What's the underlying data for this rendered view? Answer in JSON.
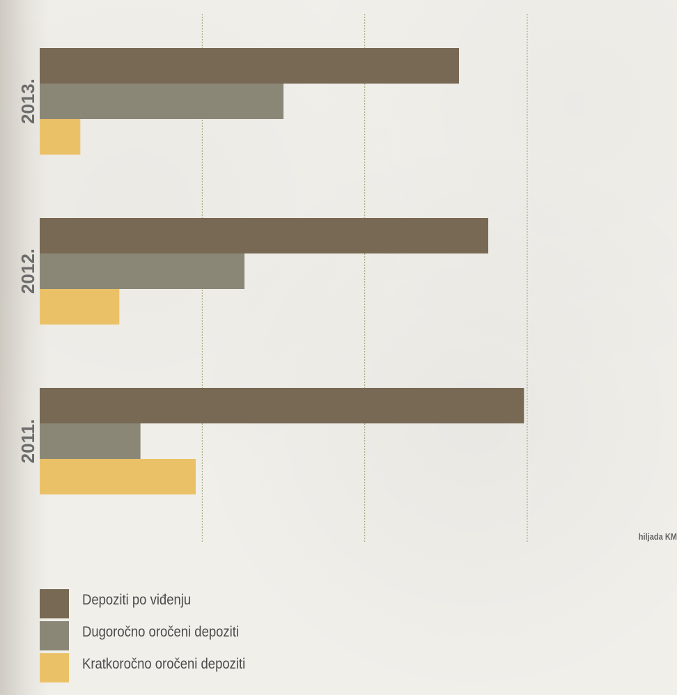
{
  "chart_data": {
    "type": "bar",
    "orientation": "horizontal",
    "categories": [
      "2013.",
      "2012.",
      "2011."
    ],
    "series": [
      {
        "name": "Depoziti po viđenju",
        "color": "#786954",
        "values": [
          129000,
          138000,
          149000
        ]
      },
      {
        "name": "Dugoročno oročeni depoziti",
        "color": "#8b8777",
        "values": [
          75000,
          63000,
          31000
        ]
      },
      {
        "name": "Kratkoročno oročeni depoziti",
        "color": "#ebc168",
        "values": [
          12500,
          24500,
          48000
        ]
      }
    ],
    "xlim": [
      0,
      150000
    ],
    "gridlines_at": [
      50000,
      100000,
      150000
    ],
    "grid": true,
    "unit": "hiljada KM",
    "legend_position": "bottom-left"
  }
}
